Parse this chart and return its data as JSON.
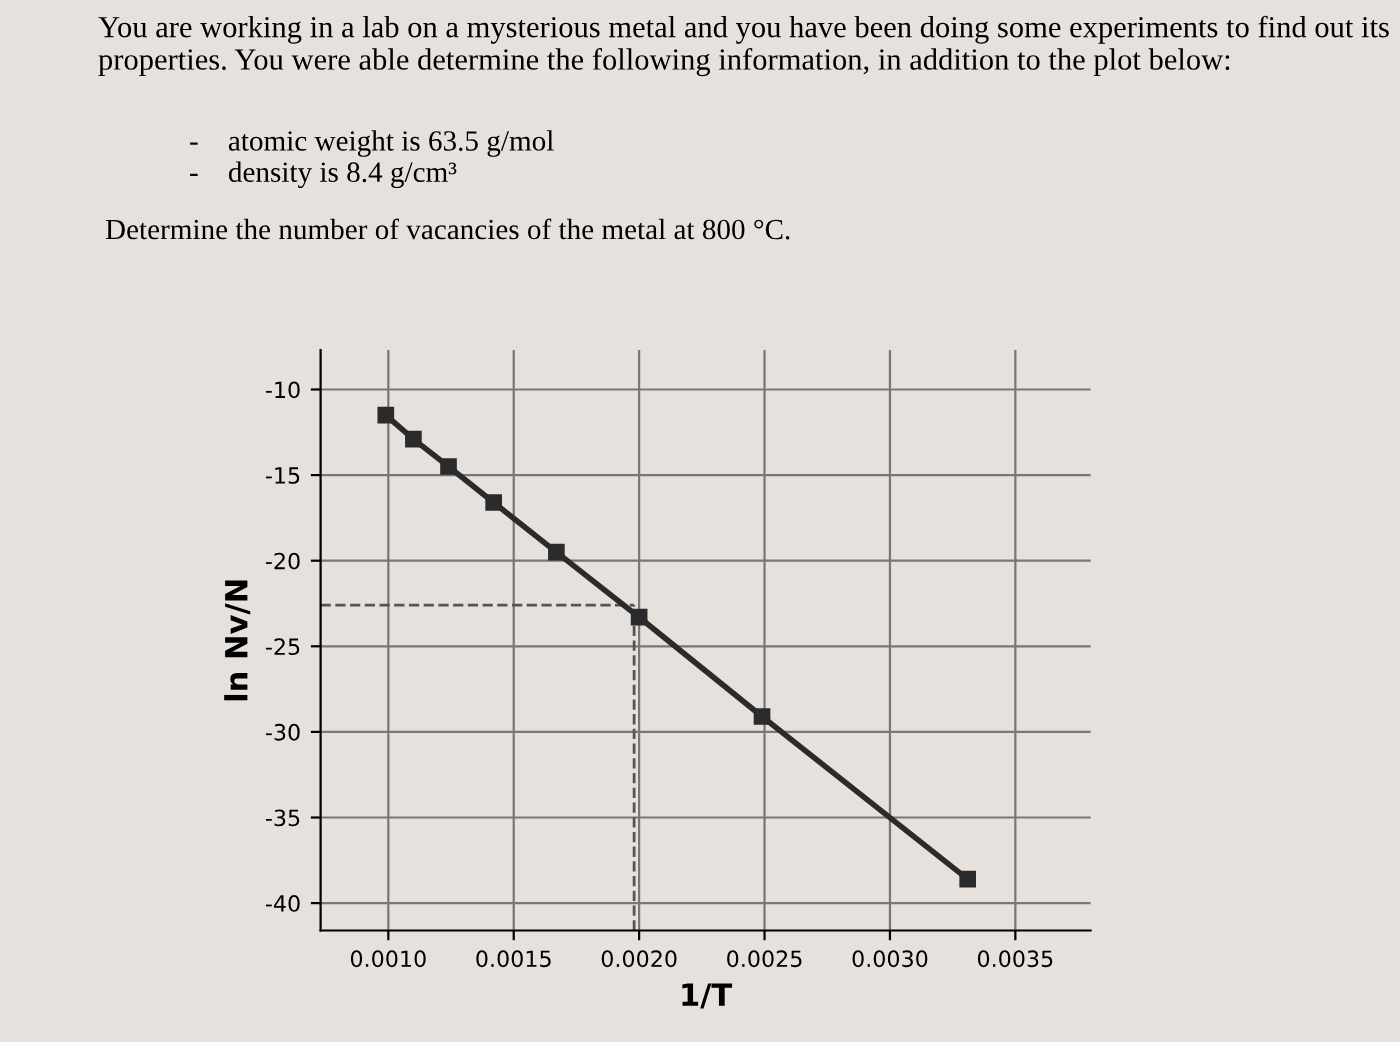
{
  "chart_data": {
    "type": "line",
    "title": "You are working in a lab on a mysterious metal and you have been doing some experiments to find out its properties. You were able determine the following information, in addition to the plot below:",
    "annotations": [
      "-    atomic weight is 63.5 g/mol",
      "-    density is 8.4 g/cm³",
      "Determine the number of vacancies of the metal at 800 °C."
    ],
    "xlabel": "1/T",
    "ylabel": "ln Nv/N",
    "series": [
      {
        "color": "#2b2b2b",
        "x": [
          0.00099,
          0.0011,
          0.00124,
          0.00142,
          0.00167,
          0.002,
          0.00249,
          0.00331
        ],
        "values": [
          -11.5,
          -12.9,
          -14.5,
          -16.6,
          -19.5,
          -23.3,
          -29.1,
          -38.6
        ]
      }
    ],
    "marker": "square",
    "line_style": "solid",
    "ref_lines": [
      {
        "axis": "y",
        "value": -22.6,
        "line_style": "dashed",
        "color": "#555555"
      },
      {
        "axis": "x",
        "value": 0.00198,
        "line_style": "dashed",
        "color": "#555555"
      }
    ],
    "xlim": [
      0.00073,
      0.0038
    ],
    "ylim": [
      -41.6,
      -7.7
    ],
    "xticks": [
      {
        "value": 0.001,
        "label": "0.0010"
      },
      {
        "value": 0.0015,
        "label": "0.0015"
      },
      {
        "value": 0.002,
        "label": "0.0020"
      },
      {
        "value": 0.0025,
        "label": "0.0025"
      },
      {
        "value": 0.003,
        "label": "0.0030"
      },
      {
        "value": 0.0035,
        "label": "0.0035"
      }
    ],
    "yticks": [
      -10,
      -15,
      -20,
      -25,
      -30,
      -35,
      -40
    ],
    "grid": true
  }
}
